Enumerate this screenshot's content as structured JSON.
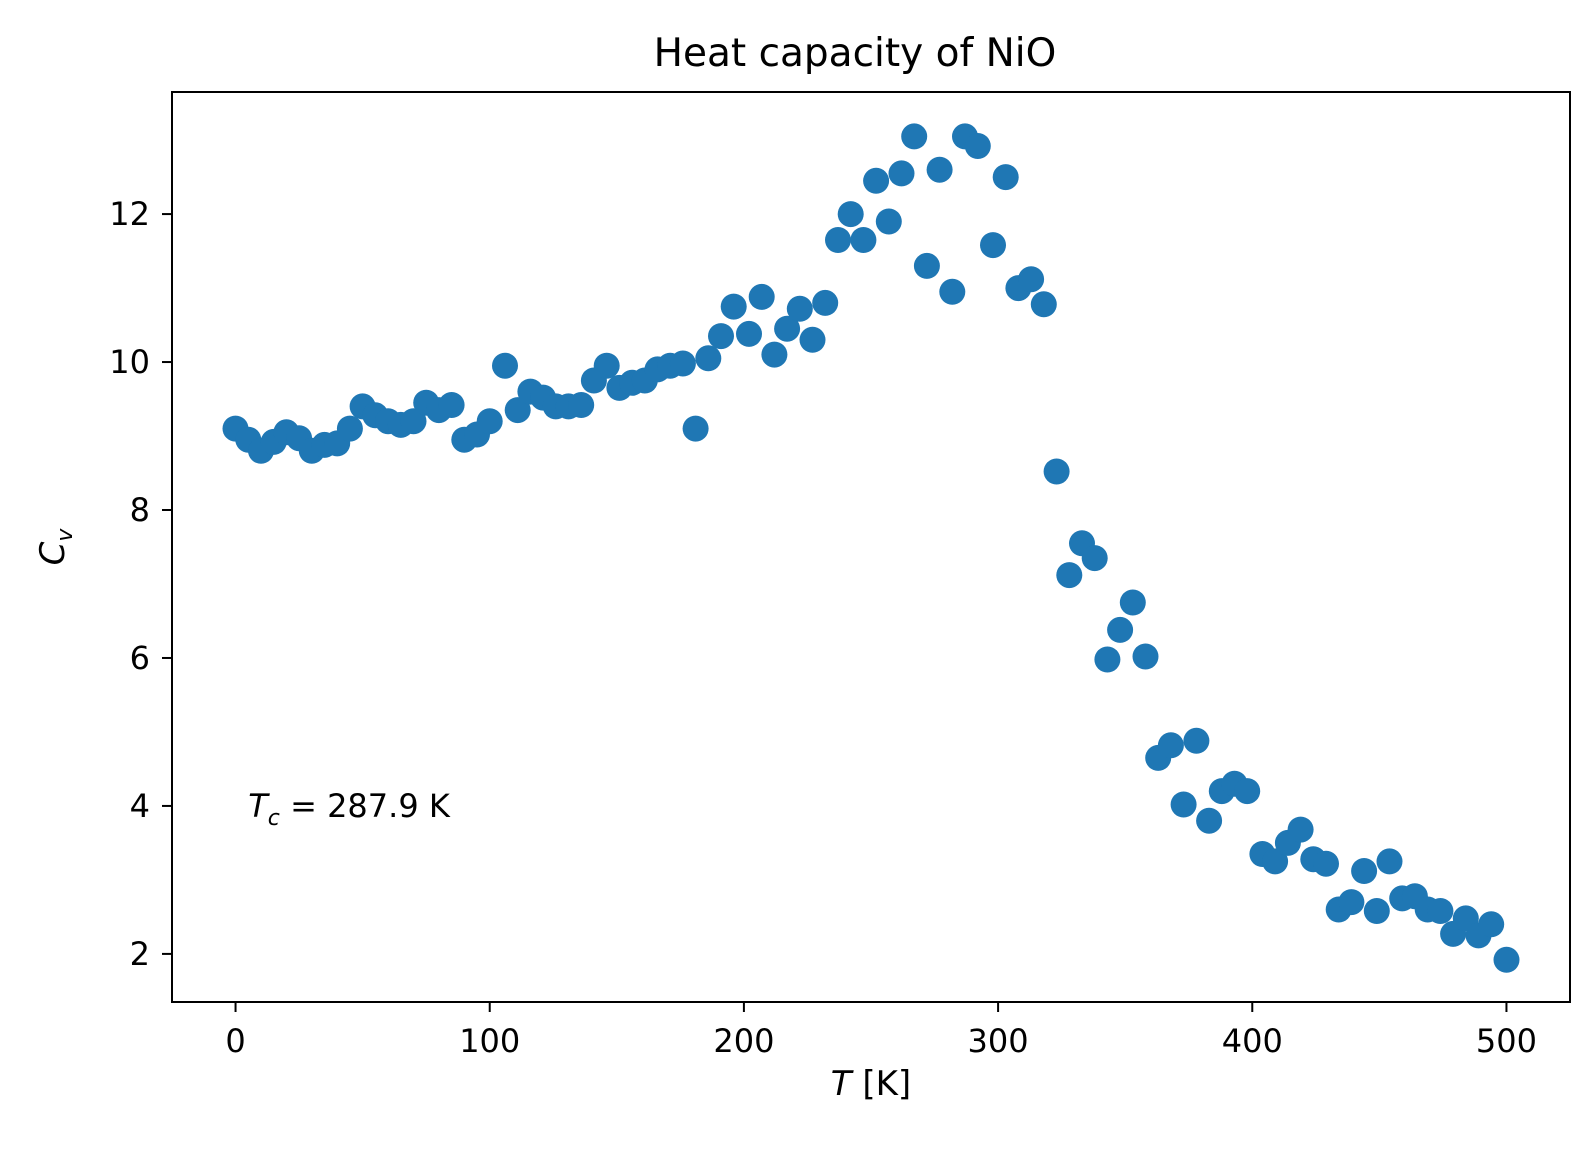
{
  "chart_data": {
    "type": "scatter",
    "title": "Heat capacity of NiO",
    "xlabel_var": "T",
    "xlabel_unit": " [K]",
    "ylabel_base": "C",
    "ylabel_sub": "v",
    "xlim": [
      -25,
      525
    ],
    "ylim": [
      1.35,
      13.65
    ],
    "xticks": [
      0,
      100,
      200,
      300,
      400,
      500
    ],
    "yticks": [
      2,
      4,
      6,
      8,
      10,
      12
    ],
    "grid": false,
    "legend": "none",
    "marker_color": "#1f77b4",
    "annotation": {
      "var": "T",
      "sub": "c",
      "text": " = 287.9 K",
      "x": 5,
      "y": 4.0
    },
    "series": [
      {
        "x": [
          0,
          5,
          10,
          15,
          20,
          25,
          30,
          35,
          40,
          45,
          50,
          55,
          60,
          65,
          70,
          75,
          80,
          85,
          90,
          95,
          100,
          106,
          111,
          116,
          121,
          126,
          131,
          136,
          141,
          146,
          151,
          156,
          161,
          166,
          171,
          176,
          181,
          186,
          191,
          196,
          202,
          207,
          212,
          217,
          222,
          227,
          232,
          237,
          242,
          247,
          252,
          257,
          262,
          267,
          272,
          277,
          282,
          287,
          292,
          298,
          303,
          308,
          313,
          318,
          323,
          328,
          333,
          338,
          343,
          348,
          353,
          358,
          363,
          368,
          373,
          378,
          383,
          388,
          393,
          398,
          404,
          409,
          414,
          419,
          424,
          429,
          434,
          439,
          444,
          449,
          454,
          459,
          464,
          469,
          474,
          479,
          484,
          489,
          494,
          500
        ],
        "y": [
          9.1,
          8.95,
          8.8,
          8.92,
          9.05,
          8.97,
          8.8,
          8.88,
          8.9,
          9.1,
          9.4,
          9.28,
          9.2,
          9.15,
          9.2,
          9.45,
          9.35,
          9.42,
          8.95,
          9.02,
          9.2,
          9.95,
          9.35,
          9.6,
          9.52,
          9.4,
          9.4,
          9.42,
          9.75,
          9.95,
          9.65,
          9.72,
          9.75,
          9.9,
          9.95,
          9.98,
          9.1,
          10.05,
          10.35,
          10.75,
          10.38,
          10.88,
          10.1,
          10.45,
          10.72,
          10.3,
          10.8,
          11.65,
          12.0,
          11.65,
          12.45,
          11.9,
          12.55,
          13.05,
          11.3,
          12.6,
          10.95,
          13.05,
          12.92,
          11.58,
          12.5,
          11.0,
          11.12,
          10.78,
          8.52,
          7.12,
          7.55,
          7.35,
          5.98,
          6.38,
          6.75,
          6.02,
          4.65,
          4.82,
          4.02,
          4.88,
          3.8,
          4.2,
          4.3,
          4.2,
          3.35,
          3.25,
          3.5,
          3.68,
          3.28,
          3.22,
          2.6,
          2.7,
          3.12,
          2.58,
          3.25,
          2.75,
          2.78,
          2.6,
          2.58,
          2.27,
          2.48,
          2.25,
          2.4,
          1.92
        ]
      }
    ]
  }
}
